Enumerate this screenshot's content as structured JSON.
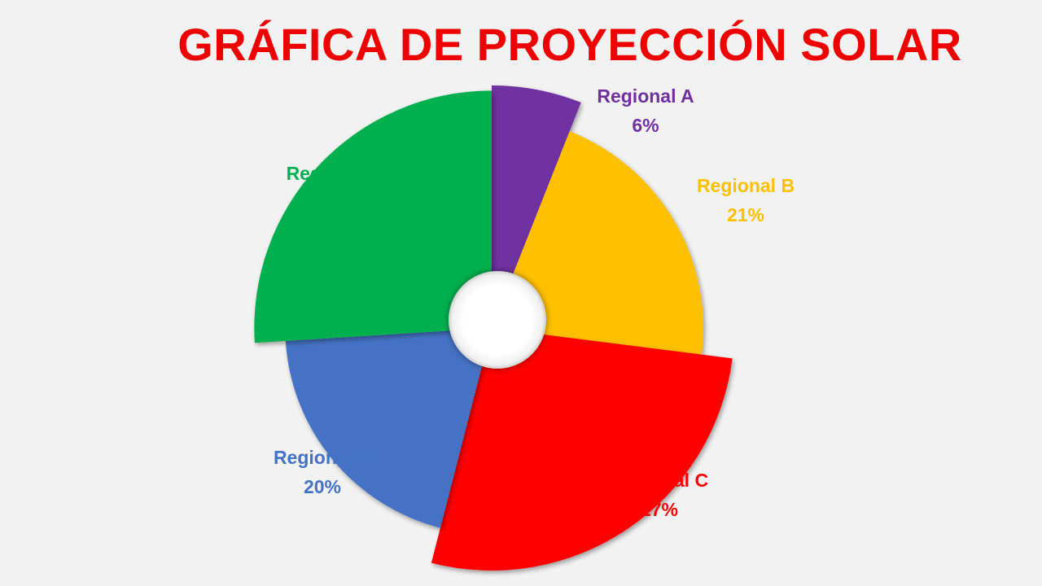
{
  "chart_data": {
    "type": "pie",
    "variant": "variable-radius donut",
    "title": "GRÁFICA DE PROYECCIÓN SOLAR",
    "slices": [
      {
        "label": "Regional A",
        "percent_label": "6%",
        "value": 6,
        "color": "#7030a0"
      },
      {
        "label": "Regional B",
        "percent_label": "21%",
        "value": 21,
        "color": "#ffc000"
      },
      {
        "label": "Regional C",
        "percent_label": "27%",
        "value": 27,
        "color": "#ff0000"
      },
      {
        "label": "Regional D",
        "percent_label": "20%",
        "value": 20,
        "color": "#4472c4"
      },
      {
        "label": "Regional E",
        "percent_label": "26%",
        "value": 26,
        "color": "#00b050"
      }
    ]
  },
  "colors": {
    "title": "#ee0000",
    "background": "#f2f2f2",
    "center_hole": "#ffffff"
  }
}
